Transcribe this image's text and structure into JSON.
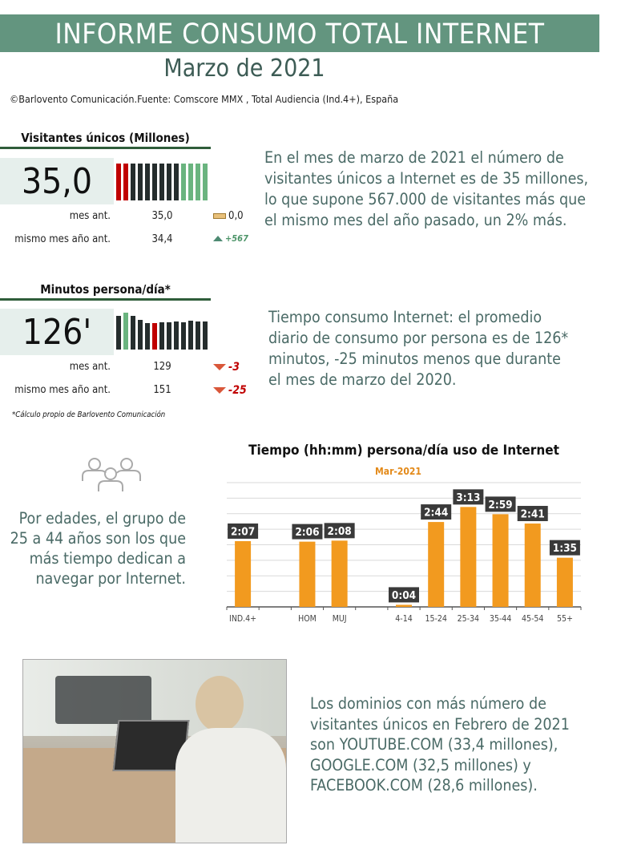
{
  "header": {
    "title": "INFORME CONSUMO TOTAL INTERNET",
    "subtitle": "Marzo de 2021",
    "source": "©Barlovento Comunicación.Fuente: Comscore MMX , Total Audiencia (Ind.4+), España"
  },
  "visitors": {
    "title": "Visitantes únicos (Millones)",
    "value": "35,0",
    "trend": [
      "down",
      "down",
      "neutral",
      "neutral",
      "neutral",
      "neutral",
      "neutral",
      "neutral",
      "neutral",
      "up",
      "up",
      "up",
      "up"
    ],
    "rows": [
      {
        "label": "mes ant.",
        "value": "35,0",
        "diff": "0,0",
        "dir": "flat"
      },
      {
        "label": "mismo mes año ant.",
        "value": "34,4",
        "diff": "+567",
        "dir": "up"
      }
    ],
    "text": "En el mes de marzo de 2021 el número de visitantes únicos a Internet es de 35 millones, lo que supone 567.000 de visitantes más  que el mismo mes del año pasado, un 2% más."
  },
  "minutes": {
    "title": "Minutos persona/día*",
    "value": "126'",
    "trend": [
      {
        "v": 0.42,
        "c": "neutral"
      },
      {
        "v": 0.46,
        "c": "up"
      },
      {
        "v": 0.42,
        "c": "neutral"
      },
      {
        "v": 0.37,
        "c": "neutral"
      },
      {
        "v": 0.33,
        "c": "neutral"
      },
      {
        "v": 0.33,
        "c": "down"
      },
      {
        "v": 0.34,
        "c": "neutral"
      },
      {
        "v": 0.34,
        "c": "neutral"
      },
      {
        "v": 0.35,
        "c": "neutral"
      },
      {
        "v": 0.34,
        "c": "neutral"
      },
      {
        "v": 0.36,
        "c": "neutral"
      },
      {
        "v": 0.35,
        "c": "neutral"
      },
      {
        "v": 0.35,
        "c": "neutral"
      }
    ],
    "rows": [
      {
        "label": "mes ant.",
        "value": "129",
        "diff": "-3",
        "dir": "down"
      },
      {
        "label": "mismo mes año ant.",
        "value": "151",
        "diff": "-25",
        "dir": "down"
      }
    ],
    "text": "Tiempo consumo Internet: el promedio diario de consumo por persona es de 126* minutos, -25 minutos menos que durante el mes de marzo  del 2020.",
    "note": "*Cálculo propio de Barlovento Comunicación"
  },
  "colors": {
    "up": "#6ab47f",
    "down": "#c00000",
    "neutral": "#252d2d",
    "bar": "#f29a1f",
    "header": "#63957f"
  },
  "ages": {
    "icon": "people-group-icon",
    "text": "Por edades, el grupo de 25 a 44 años son los que más tiempo dedican a navegar por Internet."
  },
  "chart_data": {
    "type": "bar",
    "title": "Tiempo (hh:mm) persona/día uso de Internet",
    "series_name": "Mar-2021",
    "categories": [
      "IND.4+",
      "",
      "HOM",
      "MUJ",
      "",
      "4-14",
      "15-24",
      "25-34",
      "35-44",
      "45-54",
      "55+"
    ],
    "values": [
      127,
      null,
      126,
      128,
      null,
      4,
      164,
      193,
      179,
      161,
      95
    ],
    "labels": [
      "2:07",
      "",
      "2:06",
      "2:08",
      "",
      "0:04",
      "2:44",
      "3:13",
      "2:59",
      "2:41",
      "1:35"
    ],
    "ylim": [
      0,
      240
    ],
    "ystep": 30,
    "grid": true,
    "xlabel": "",
    "ylabel": ""
  },
  "domains": {
    "text": "Los dominios con más número de visitantes únicos en Febrero de 2021 son YOUTUBE.COM (33,4 millones), GOOGLE.COM (32,5 millones) y FACEBOOK.COM (28,6 millones)."
  }
}
